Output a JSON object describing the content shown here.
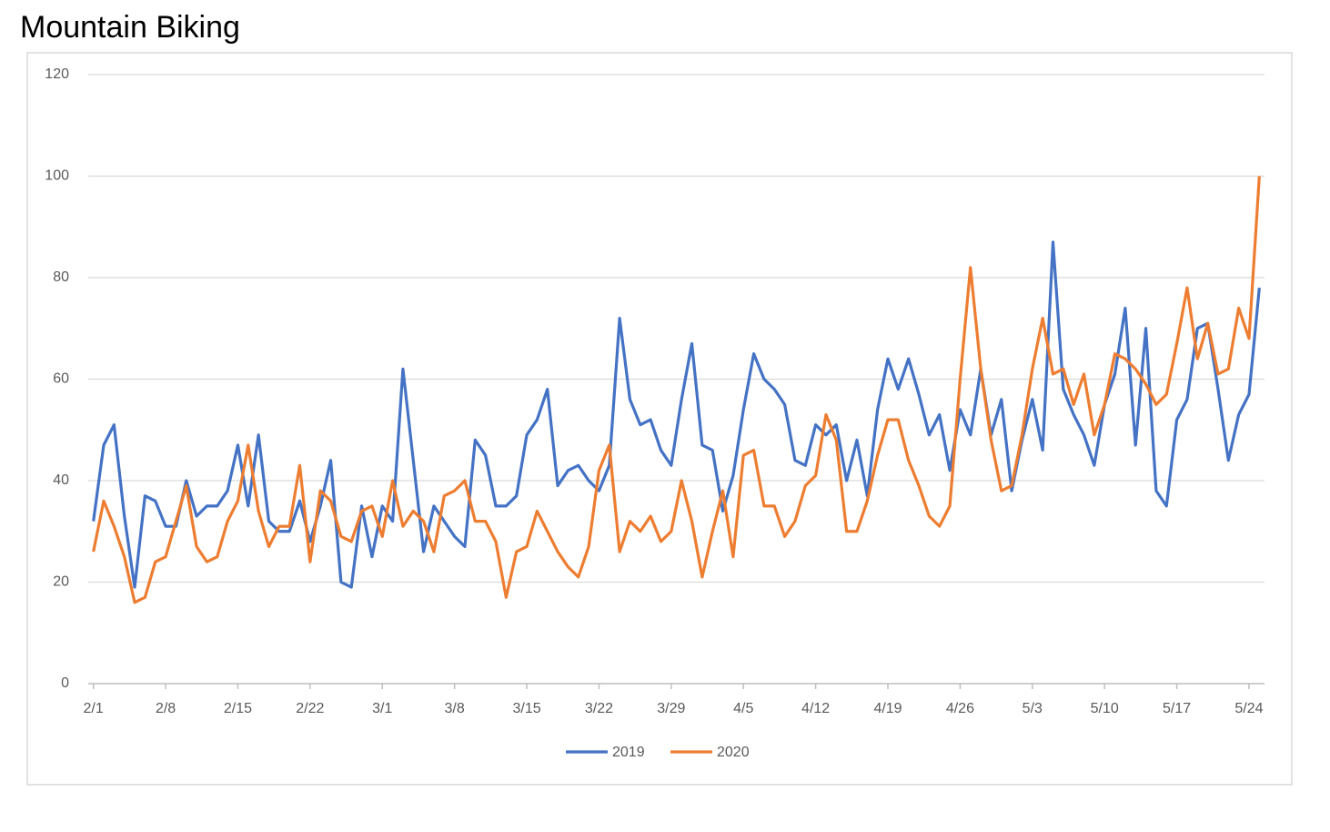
{
  "chart_data": {
    "type": "line",
    "title": "Mountain Biking",
    "categories": [
      "2/1",
      null,
      null,
      null,
      null,
      null,
      null,
      "2/8",
      null,
      null,
      null,
      null,
      null,
      null,
      "2/15",
      null,
      null,
      null,
      null,
      null,
      null,
      "2/22",
      null,
      null,
      null,
      null,
      null,
      null,
      "3/1",
      null,
      null,
      null,
      null,
      null,
      null,
      "3/8",
      null,
      null,
      null,
      null,
      null,
      null,
      "3/15",
      null,
      null,
      null,
      null,
      null,
      null,
      "3/22",
      null,
      null,
      null,
      null,
      null,
      null,
      "3/29",
      null,
      null,
      null,
      null,
      null,
      null,
      "4/5",
      null,
      null,
      null,
      null,
      null,
      null,
      "4/12",
      null,
      null,
      null,
      null,
      null,
      null,
      "4/19",
      null,
      null,
      null,
      null,
      null,
      null,
      "4/26",
      null,
      null,
      null,
      null,
      null,
      null,
      "5/3",
      null,
      null,
      null,
      null,
      null,
      null,
      "5/10",
      null,
      null,
      null,
      null,
      null,
      null,
      "5/17",
      null,
      null,
      null,
      null,
      null,
      null,
      "5/24",
      null
    ],
    "series": [
      {
        "name": "2019",
        "color": "#4472c4",
        "values": [
          32,
          47,
          51,
          33,
          19,
          37,
          36,
          31,
          31,
          40,
          33,
          35,
          35,
          38,
          47,
          35,
          49,
          32,
          30,
          30,
          36,
          28,
          35,
          44,
          20,
          19,
          35,
          25,
          35,
          32,
          62,
          44,
          26,
          35,
          32,
          29,
          27,
          48,
          45,
          35,
          35,
          37,
          49,
          52,
          58,
          39,
          42,
          43,
          40,
          38,
          43,
          72,
          56,
          51,
          52,
          46,
          43,
          56,
          67,
          47,
          46,
          34,
          41,
          54,
          65,
          60,
          58,
          55,
          44,
          43,
          51,
          49,
          51,
          40,
          48,
          37,
          54,
          64,
          58,
          64,
          57,
          49,
          53,
          42,
          54,
          49,
          62,
          49,
          56,
          38,
          48,
          56,
          46,
          87,
          58,
          53,
          49,
          43,
          55,
          61,
          74,
          47,
          70,
          38,
          35,
          52,
          56,
          70,
          71,
          58,
          44,
          53,
          57,
          78
        ]
      },
      {
        "name": "2020",
        "color": "#ed7d31",
        "values": [
          26,
          36,
          31,
          25,
          16,
          17,
          24,
          25,
          32,
          39,
          27,
          24,
          25,
          32,
          36,
          47,
          34,
          27,
          31,
          31,
          43,
          24,
          38,
          36,
          29,
          28,
          34,
          35,
          29,
          40,
          31,
          34,
          32,
          26,
          37,
          38,
          40,
          32,
          32,
          28,
          17,
          26,
          27,
          34,
          30,
          26,
          23,
          21,
          27,
          42,
          47,
          26,
          32,
          30,
          33,
          28,
          30,
          40,
          32,
          21,
          30,
          38,
          25,
          45,
          46,
          35,
          35,
          29,
          32,
          39,
          41,
          53,
          48,
          30,
          30,
          36,
          45,
          52,
          52,
          44,
          39,
          33,
          31,
          35,
          60,
          82,
          62,
          48,
          38,
          39,
          49,
          62,
          72,
          61,
          62,
          55,
          61,
          49,
          55,
          65,
          64,
          62,
          59,
          55,
          57,
          67,
          78,
          64,
          71,
          61,
          62,
          74,
          68,
          100
        ]
      }
    ],
    "ylim": [
      0,
      120
    ],
    "yticks": [
      0,
      20,
      40,
      60,
      80,
      100,
      120
    ],
    "grid": true,
    "legend": "bottom"
  }
}
